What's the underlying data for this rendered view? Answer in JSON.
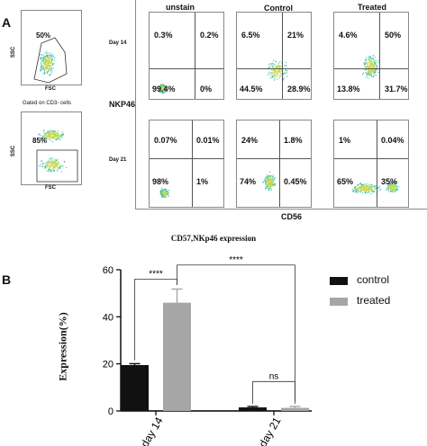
{
  "figure": {
    "panel_a_letter": "A",
    "panel_b_letter": "B",
    "gating": {
      "top": {
        "pct": "50%",
        "ylabel": "SSC",
        "xlabel": "FSC"
      },
      "note": "Gated on CD3- cells",
      "bottom": {
        "pct": "85%",
        "ylabel": "SSC",
        "xlabel": "FSC"
      }
    },
    "columns": [
      "unstain",
      "Control",
      "Treated"
    ],
    "rows": [
      "Day 14",
      "Day 21"
    ],
    "y_marker": "NKP46",
    "x_marker": "CD56",
    "day14": [
      {
        "ul": "0.3%",
        "ur": "0.2%",
        "ll": "99.4%",
        "lr": "0%"
      },
      {
        "ul": "6.5%",
        "ur": "21%",
        "ll": "44.5%",
        "lr": "28.9%"
      },
      {
        "ul": "4.6%",
        "ur": "50%",
        "ll": "13.8%",
        "lr": "31.7%"
      }
    ],
    "day21": [
      {
        "ul": "0.07%",
        "ur": "0.01%",
        "ll": "98%",
        "lr": "1%"
      },
      {
        "ul": "24%",
        "ur": "1.8%",
        "ll": "74%",
        "lr": "0.45%"
      },
      {
        "ul": "1%",
        "ur": "0.04%",
        "ll": "65%",
        "lr": "35%"
      }
    ]
  },
  "chart_data": {
    "type": "bar",
    "title": "CD57,NKp46 expression",
    "ylabel": "Expression(%)",
    "xlabel": "",
    "ylim": [
      0,
      60
    ],
    "yticks": [
      0,
      20,
      40,
      60
    ],
    "categories": [
      "day 14",
      "day 21"
    ],
    "series": [
      {
        "name": "control",
        "values": [
          19.5,
          1.5
        ],
        "errors": [
          0.6,
          0.4
        ],
        "color": "#111111"
      },
      {
        "name": "treated",
        "values": [
          46,
          1.3
        ],
        "errors": [
          5.8,
          0.6
        ],
        "color": "#a6a6a6"
      }
    ],
    "annotations": [
      {
        "text": "****",
        "between": "day 14 control vs day 14 treated"
      },
      {
        "text": "****",
        "between": "day 14 treated vs day 21 treated"
      },
      {
        "text": "ns",
        "between": "day 21 control vs day 21 treated"
      }
    ],
    "legend_position": "right",
    "grid": false
  }
}
